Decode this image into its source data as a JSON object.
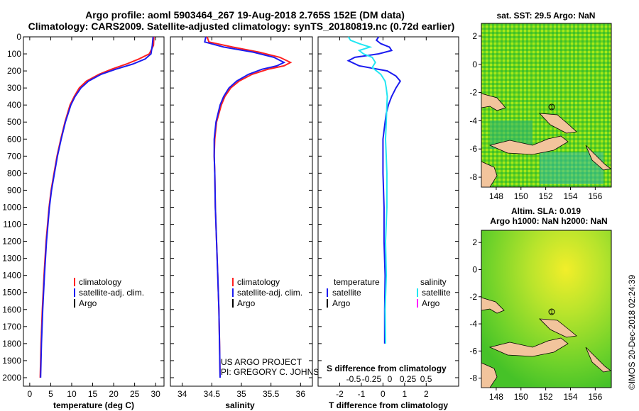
{
  "header": {
    "line1": "Argo profile: aoml 5903464_267 19-Aug-2018 2.765S 152E (DM data)",
    "line2": "Climatology: CARS2009. Satellite-adjusted climatology: synTS_20180819.nc (0.72d earlier)"
  },
  "colors": {
    "climatology": "#ff2020",
    "satellite": "#1c1cf0",
    "argo": "#000000",
    "sat_salinity": "#22e6f2",
    "argo_salinity": "#ff20ff"
  },
  "credits": {
    "project": "US ARGO PROJECT",
    "pi": "PI: GREGORY C. JOHNSON",
    "imos": "©IMOS 20-Dec-2018 02:24:39"
  },
  "chart_data": [
    {
      "id": "temperature",
      "type": "line",
      "xlabel": "temperature (deg C)",
      "ylabel": "",
      "xlim": [
        -1.5,
        32
      ],
      "ylim": [
        2050,
        0
      ],
      "xticks": [
        0,
        5,
        10,
        15,
        20,
        25,
        30
      ],
      "xtick_labels": [
        "0",
        "5",
        "10",
        "15",
        "20",
        "25",
        "30"
      ],
      "yticks": [
        0,
        100,
        200,
        300,
        400,
        500,
        600,
        700,
        800,
        900,
        1000,
        1100,
        1200,
        1300,
        1400,
        1500,
        1600,
        1700,
        1800,
        1900,
        2000
      ],
      "ytick_labels": [
        "0",
        "100",
        "200",
        "300",
        "400",
        "500",
        "600",
        "700",
        "800",
        "900",
        "1000",
        "1100",
        "1200",
        "1300",
        "1400",
        "1500",
        "1600",
        "1700",
        "1800",
        "1900",
        "2000"
      ],
      "legend": [
        "climatology",
        "satellite-adj. clim.",
        "Argo"
      ],
      "series": [
        {
          "name": "climatology",
          "depth": [
            0,
            50,
            100,
            130,
            160,
            190,
            220,
            260,
            300,
            350,
            400,
            500,
            600,
            700,
            800,
            900,
            1000,
            1200,
            1400,
            1600,
            1800,
            2000
          ],
          "values": [
            29.6,
            29.5,
            28.5,
            26,
            23,
            19.5,
            16.5,
            13.5,
            11.8,
            10.6,
            9.6,
            8.4,
            7.4,
            6.5,
            5.8,
            5.1,
            4.6,
            3.9,
            3.4,
            3,
            2.7,
            2.5
          ]
        },
        {
          "name": "satellite-adj. clim.",
          "depth": [
            0,
            50,
            100,
            130,
            160,
            190,
            220,
            260,
            300,
            350,
            400,
            500,
            600,
            700,
            800,
            900,
            1000,
            1200,
            1400,
            1600,
            1800,
            2000
          ],
          "values": [
            29.4,
            29.2,
            28.9,
            27.5,
            24.5,
            20.5,
            17,
            14,
            12.2,
            10.8,
            9.8,
            8.5,
            7.5,
            6.6,
            5.9,
            5.2,
            4.7,
            4,
            3.5,
            3.1,
            2.8,
            2.6
          ]
        }
      ]
    },
    {
      "id": "salinity",
      "type": "line",
      "xlabel": "salinity",
      "xlim": [
        33.8,
        36.2
      ],
      "ylim": [
        2050,
        0
      ],
      "xticks": [
        34,
        34.5,
        35,
        35.5,
        36
      ],
      "xtick_labels": [
        "34",
        "34.5",
        "35",
        "35.5",
        "36"
      ],
      "legend": [
        "climatology",
        "satellite-adj. clim.",
        "Argo"
      ],
      "series": [
        {
          "name": "climatology",
          "depth": [
            0,
            30,
            60,
            90,
            120,
            150,
            170,
            190,
            220,
            260,
            300,
            350,
            400,
            500,
            600,
            700,
            800,
            1000,
            1200,
            1400,
            1600,
            1800,
            2000
          ],
          "values": [
            34.42,
            34.45,
            34.85,
            35.3,
            35.65,
            35.83,
            35.72,
            35.45,
            35.18,
            34.96,
            34.82,
            34.72,
            34.66,
            34.58,
            34.55,
            34.54,
            34.55,
            34.56,
            34.58,
            34.6,
            34.62,
            34.63,
            34.64
          ]
        },
        {
          "name": "satellite-adj. clim.",
          "depth": [
            0,
            30,
            60,
            90,
            120,
            150,
            170,
            190,
            220,
            260,
            300,
            350,
            400,
            500,
            600,
            700,
            800,
            1000,
            1200,
            1400,
            1600,
            1800,
            2000
          ],
          "values": [
            34.4,
            34.38,
            34.7,
            35.2,
            35.55,
            35.72,
            35.6,
            35.35,
            35.12,
            34.92,
            34.79,
            34.7,
            34.64,
            34.57,
            34.54,
            34.54,
            34.55,
            34.56,
            34.58,
            34.6,
            34.62,
            34.63,
            34.64
          ]
        }
      ]
    },
    {
      "id": "difference",
      "type": "line",
      "xlabel": "T difference from climatology",
      "xlabel_top": "S difference from climatology",
      "xlim": [
        -3,
        3.5
      ],
      "ylim": [
        2050,
        0
      ],
      "xticks": [
        -2,
        -1,
        0,
        1,
        2
      ],
      "xtick_labels": [
        "-2",
        "-1",
        "0",
        "1",
        "2"
      ],
      "sticks": [
        -0.5,
        -0.25,
        0,
        0.25,
        0.5
      ],
      "stick_labels": [
        "-0.5",
        "-0.25",
        "0",
        "0.25",
        "0.5"
      ],
      "legend_left_title": "temperature",
      "legend_right_title": "salinity",
      "legend_left": [
        "satellite",
        "Argo"
      ],
      "legend_right": [
        "satellite",
        "Argo"
      ],
      "series": [
        {
          "name": "T satellite",
          "depth": [
            0,
            20,
            40,
            60,
            80,
            100,
            120,
            140,
            170,
            200,
            230,
            260,
            300,
            350,
            400,
            450,
            500,
            600,
            800,
            1000,
            1200,
            1400,
            1600,
            1800
          ],
          "values": [
            -0.2,
            -0.3,
            -0.1,
            0.3,
            0.4,
            -0.2,
            -1.3,
            -1.6,
            -1.1,
            0.2,
            0.6,
            0.8,
            0.6,
            0.4,
            0.25,
            0.15,
            0.1,
            0,
            0,
            0.05,
            0.05,
            0.1,
            0.08,
            0.08
          ]
        },
        {
          "name": "S satellite",
          "depth": [
            0,
            20,
            40,
            60,
            80,
            100,
            120,
            150,
            180,
            220,
            260,
            300,
            350,
            400,
            500,
            600,
            700,
            800,
            1000,
            1200,
            1400,
            1600,
            1800
          ],
          "values": [
            -1.6,
            -1.5,
            -1.1,
            -0.6,
            -1.1,
            -0.9,
            -0.5,
            -0.35,
            -0.5,
            -0.1,
            0.1,
            0.15,
            0.2,
            0.18,
            0.15,
            0.12,
            0.15,
            0.18,
            0.18,
            0.12,
            0.15,
            0.1,
            0.12
          ]
        }
      ]
    },
    {
      "id": "sst_map",
      "type": "heatmap",
      "title": "sat. SST: 29.5 Argo: NaN",
      "xticks": [
        148,
        150,
        152,
        154,
        156
      ],
      "yticks": [
        2,
        0,
        -2,
        -4,
        -6,
        -8
      ],
      "marker": "1"
    },
    {
      "id": "sla_map",
      "type": "heatmap",
      "title": "Altim. SLA: 0.019",
      "subtitle": "Argo h1000: NaN h2000: NaN",
      "xticks": [
        148,
        150,
        152,
        154,
        156
      ],
      "yticks": [
        2,
        0,
        -2,
        -4,
        -6,
        -8
      ],
      "marker": "1"
    }
  ]
}
